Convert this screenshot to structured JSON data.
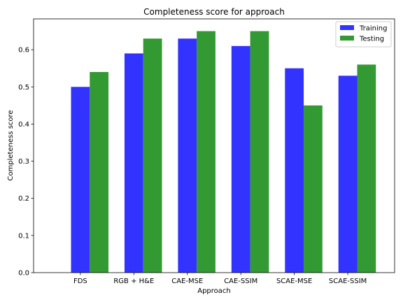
{
  "chart_data": {
    "type": "bar",
    "title": "Completeness score for approach",
    "xlabel": "Approach",
    "ylabel": "Completeness score",
    "categories": [
      "FDS",
      "RGB + H&E",
      "CAE-MSE",
      "CAE-SSIM",
      "SCAE-MSE",
      "SCAE-SSIM"
    ],
    "series": [
      {
        "name": "Training",
        "values": [
          0.5,
          0.59,
          0.63,
          0.61,
          0.55,
          0.53
        ],
        "color": "#3333ff"
      },
      {
        "name": "Testing",
        "values": [
          0.54,
          0.63,
          0.65,
          0.65,
          0.45,
          0.56
        ],
        "color": "#339933"
      }
    ],
    "ylim": [
      0,
      0.683
    ],
    "yticks": [
      "0.0",
      "0.1",
      "0.2",
      "0.3",
      "0.4",
      "0.5",
      "0.6"
    ],
    "grid": false,
    "legend_position": "top-right"
  }
}
